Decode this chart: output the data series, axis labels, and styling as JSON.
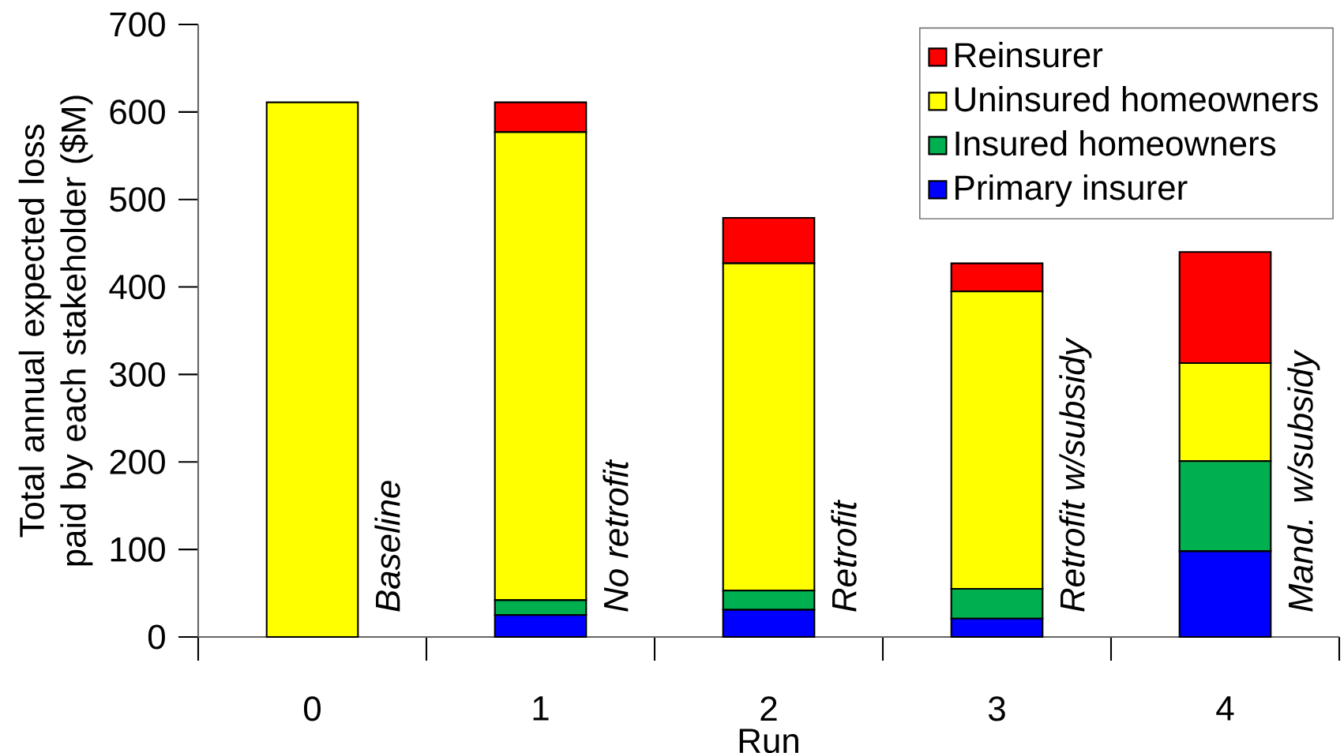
{
  "chart_data": {
    "type": "bar",
    "stacked": true,
    "xlabel": "Run",
    "ylabel": "Total annual expected loss paid by each stakeholder ($M)",
    "categories": [
      "0",
      "1",
      "2",
      "3",
      "4"
    ],
    "series": [
      {
        "name": "Primary insurer",
        "color": "#0000ff",
        "values": [
          0,
          25,
          31,
          21,
          98
        ]
      },
      {
        "name": "Insured homeowners",
        "color": "#00b050",
        "values": [
          0,
          17,
          22,
          34,
          103
        ]
      },
      {
        "name": "Uninsured homeowners",
        "color": "#ffff00",
        "values": [
          611,
          535,
          374,
          340,
          112
        ]
      },
      {
        "name": "Reinsurer",
        "color": "#ff0000",
        "values": [
          0,
          34,
          52,
          32,
          127
        ]
      }
    ],
    "ylim": [
      0,
      700
    ],
    "yticks": [
      0,
      100,
      200,
      300,
      400,
      500,
      600,
      700
    ],
    "legend": "top right",
    "grid": false,
    "annotations": [
      "Baseline",
      "No retrofit",
      "Retrofit",
      "Retrofit w/subsidy",
      "Mand. w/subsidy"
    ]
  }
}
